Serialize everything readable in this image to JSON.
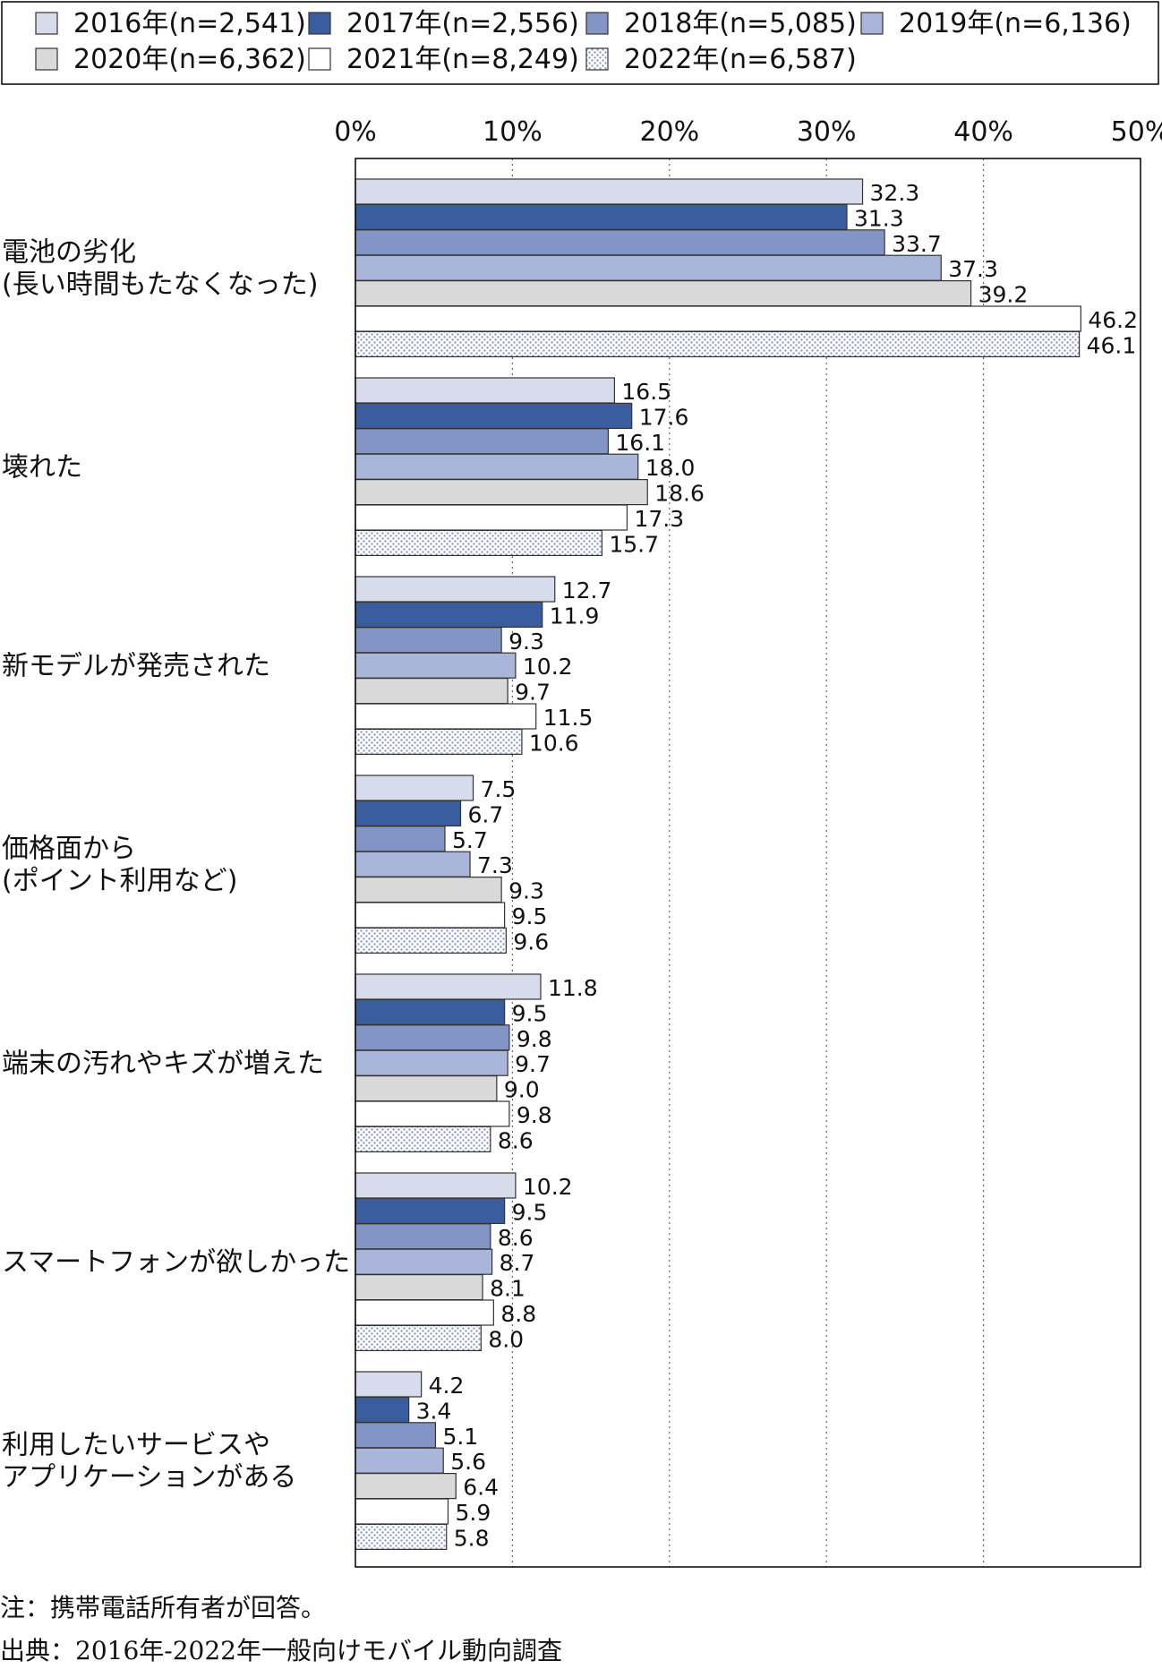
{
  "chart_data": {
    "type": "bar",
    "orientation": "horizontal",
    "xlim": [
      0,
      50
    ],
    "x_ticks": [
      "0%",
      "10%",
      "20%",
      "30%",
      "40%",
      "50%"
    ],
    "grid": "vertical dotted",
    "legend_position": "top",
    "categories": [
      "電池の劣化\n(長い時間もたなくなった)",
      "壊れた",
      "新モデルが発売された",
      "価格面から\n(ポイント利用など)",
      "端末の汚れやキズが増えた",
      "スマートフォンが欲しかった",
      "利用したいサービスや\nアプリケーションがある"
    ],
    "series": [
      {
        "name": "2016年(n=2,541)",
        "color": "#d7dcec",
        "pattern": "solid",
        "values": [
          32.3,
          16.5,
          12.7,
          7.5,
          11.8,
          10.2,
          4.2
        ]
      },
      {
        "name": "2017年(n=2,556)",
        "color": "#3a5da0",
        "pattern": "solid",
        "values": [
          31.3,
          17.6,
          11.9,
          6.7,
          9.5,
          9.5,
          3.4
        ]
      },
      {
        "name": "2018年(n=5,085)",
        "color": "#8295c6",
        "pattern": "solid",
        "values": [
          33.7,
          16.1,
          9.3,
          5.7,
          9.8,
          8.6,
          5.1
        ]
      },
      {
        "name": "2019年(n=6,136)",
        "color": "#aab6d9",
        "pattern": "solid",
        "values": [
          37.3,
          18.0,
          10.2,
          7.3,
          9.7,
          8.7,
          5.6
        ]
      },
      {
        "name": "2020年(n=6,362)",
        "color": "#d9d9d9",
        "pattern": "solid",
        "values": [
          39.2,
          18.6,
          9.7,
          9.3,
          9.0,
          8.1,
          6.4
        ]
      },
      {
        "name": "2021年(n=8,249)",
        "color": "#ffffff",
        "pattern": "solid",
        "values": [
          46.2,
          17.3,
          11.5,
          9.5,
          9.8,
          8.8,
          5.9
        ]
      },
      {
        "name": "2022年(n=6,587)",
        "color": "#e4e8f4",
        "pattern": "dotted",
        "values": [
          46.1,
          15.7,
          10.6,
          9.6,
          8.6,
          8.0,
          5.8
        ]
      }
    ]
  },
  "footer": {
    "note": "注：携帯電話所有者が回答。",
    "source": "出典：2016年-2022年一般向けモバイル動向調査"
  }
}
